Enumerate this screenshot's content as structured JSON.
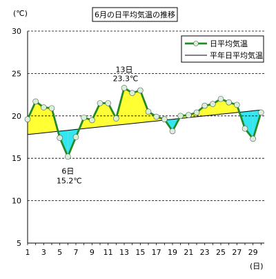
{
  "chart_data": {
    "type": "line",
    "title": "6月の日平均気温の推移",
    "ylabel": "(℃)",
    "xlabel": "(日)",
    "ylim": [
      5,
      30
    ],
    "yticks": [
      5,
      10,
      15,
      20,
      25,
      30
    ],
    "xticks": [
      1,
      3,
      5,
      7,
      9,
      11,
      13,
      15,
      17,
      19,
      21,
      23,
      25,
      27,
      29
    ],
    "grid": "dashed-horizontal",
    "legend_position": "top-right",
    "x": [
      1,
      2,
      3,
      4,
      5,
      6,
      7,
      8,
      9,
      10,
      11,
      12,
      13,
      14,
      15,
      16,
      17,
      18,
      19,
      20,
      21,
      22,
      23,
      24,
      25,
      26,
      27,
      28,
      29,
      30
    ],
    "series": [
      {
        "name": "日平均気温",
        "color": "#228B22",
        "values": [
          19.6,
          21.7,
          21.0,
          20.9,
          17.4,
          15.2,
          17.5,
          19.8,
          19.5,
          21.5,
          21.5,
          19.7,
          23.3,
          22.7,
          23.0,
          20.5,
          19.9,
          19.6,
          18.2,
          20.0,
          20.1,
          20.4,
          21.2,
          21.4,
          22.0,
          21.6,
          21.3,
          18.5,
          17.3,
          20.4
        ]
      },
      {
        "name": "平年日平均気温",
        "color": "#000000",
        "values": [
          17.8,
          17.9,
          18.0,
          18.1,
          18.2,
          18.3,
          18.4,
          18.5,
          18.6,
          18.7,
          18.8,
          18.9,
          19.0,
          19.1,
          19.2,
          19.3,
          19.4,
          19.5,
          19.6,
          19.7,
          19.8,
          19.9,
          20.0,
          20.1,
          20.2,
          20.3,
          20.4,
          20.5,
          20.6,
          20.7
        ]
      }
    ],
    "annotations": [
      {
        "day": 13,
        "label_day": "13日",
        "label_value": "23.3℃"
      },
      {
        "day": 6,
        "label_day": "6日",
        "label_value": "15.2℃"
      }
    ],
    "fill_above_color": "#FFFF33",
    "fill_below_color": "#33E6F0"
  }
}
